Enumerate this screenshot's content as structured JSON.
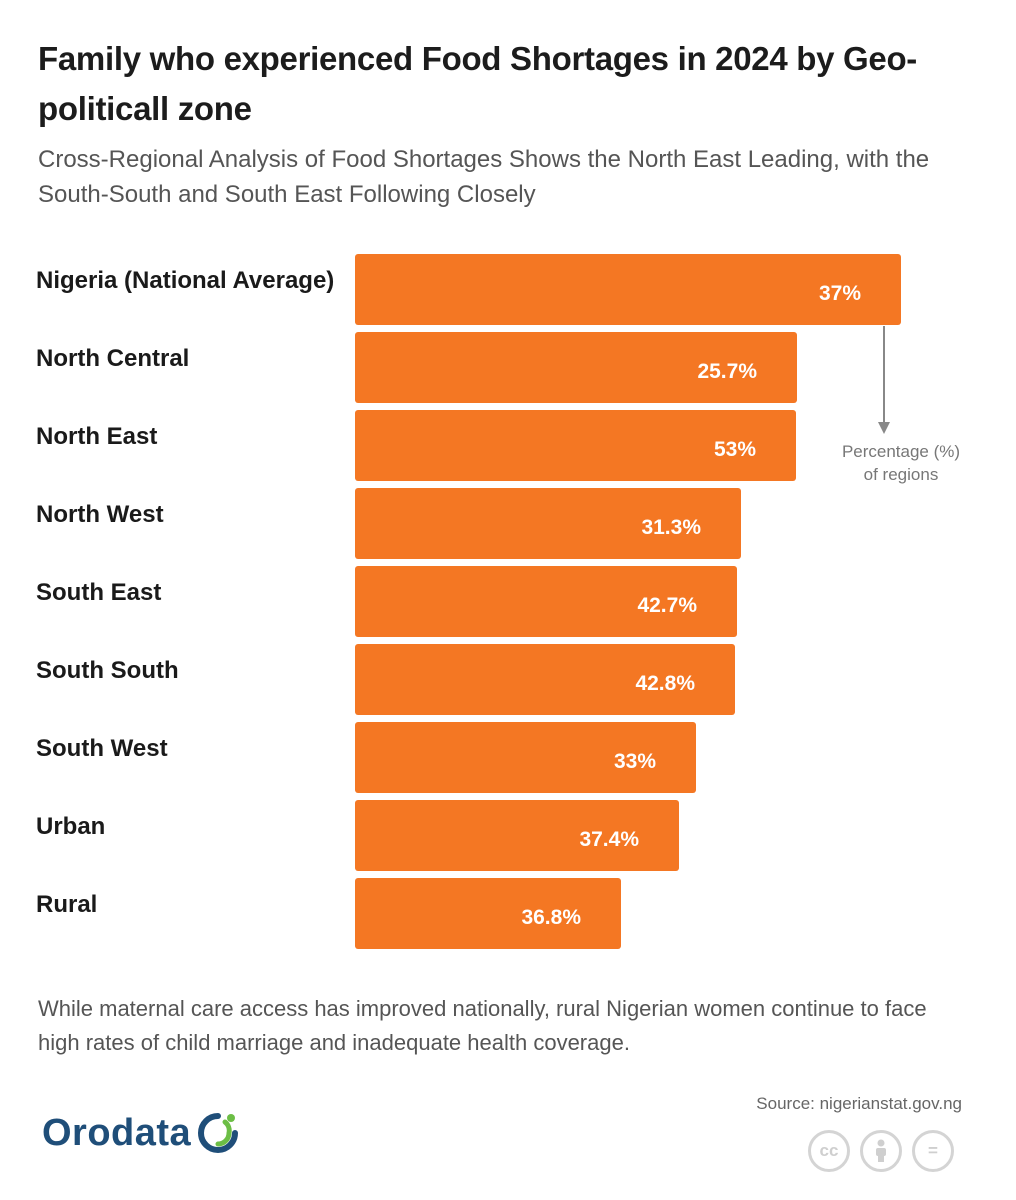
{
  "title": "Family who experienced Food Shortages in 2024 by Geo-politicall zone",
  "subtitle": "Cross-Regional Analysis of Food Shortages Shows the North East Leading, with the South-South and South East Following Closely",
  "annotation": {
    "line1": "Percentage (%)",
    "line2": "of regions"
  },
  "footnote": "While maternal care access has improved nationally, rural Nigerian women continue to face high rates of child marriage and inadequate health coverage.",
  "source": "Source: nigerianstat.gov.ng",
  "brand": {
    "name": "Orodata"
  },
  "license_icons": [
    "cc-icon",
    "attribution-person-icon",
    "no-derivatives-equals-icon"
  ],
  "colors": {
    "bar": "#F47723",
    "title": "#1C1C1C",
    "subtitle": "#555555",
    "brand_blue": "#1F4E79",
    "brand_green": "#6CBE45",
    "arrow": "#888888"
  },
  "chart_data": {
    "type": "bar",
    "orientation": "horizontal",
    "title": "Family who experienced Food Shortages in 2024 by Geo-politicall zone",
    "xlabel": "Percentage (%) of regions",
    "ylabel": "",
    "categories": [
      "Nigeria (National Average)",
      "North Central",
      "North East",
      "North West",
      "South East",
      "South South",
      "South West",
      "Urban",
      "Rural"
    ],
    "values": [
      37,
      25.7,
      53,
      31.3,
      42.7,
      42.8,
      33,
      37.4,
      36.8
    ],
    "value_labels": [
      "37%",
      "25.7%",
      "53%",
      "31.3%",
      "42.7%",
      "42.8%",
      "33%",
      "37.4%",
      "36.8%"
    ],
    "grid": false,
    "legend": "none"
  }
}
